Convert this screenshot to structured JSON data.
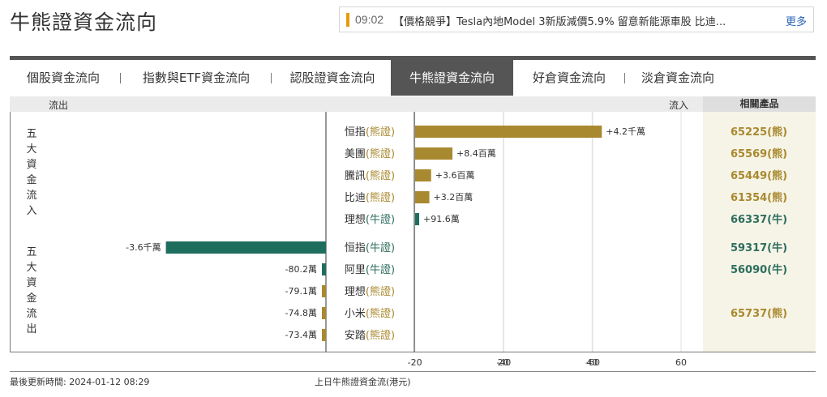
{
  "page_title": "牛熊證資金流向",
  "news": {
    "time": "09:02",
    "text": "【價格競爭】Tesla內地Model 3新版減價5.9% 留意新能源車股 比迪...",
    "more": "更多"
  },
  "tabs": [
    {
      "label": "個股資金流向"
    },
    {
      "label": "指數與ETF資金流向"
    },
    {
      "label": "認股證資金流向"
    },
    {
      "label": "牛熊證資金流向",
      "active": true
    },
    {
      "label": "好倉資金流向"
    },
    {
      "label": "淡倉資金流向"
    }
  ],
  "table_header": {
    "outflow": "流出",
    "inflow": "流入",
    "related": "相關產品"
  },
  "groups": {
    "top_inflow": "五大資金流入",
    "top_outflow": "五大資金流出"
  },
  "colors": {
    "bear": "#a9892f",
    "bull": "#1e6e5e",
    "text_bear": "#a9892f",
    "text_bull": "#2e6e5e"
  },
  "chart_data": {
    "type": "bar",
    "orientation": "horizontal",
    "unit": "百萬港元",
    "xlim": [
      -70,
      70
    ],
    "x_ticks": [
      -60,
      -40,
      -20,
      20,
      40,
      60
    ],
    "caption": "上日牛熊證資金流(港元)",
    "inflow": [
      {
        "name": "恒指",
        "kind": "(熊證)",
        "type": "bear",
        "value": 42,
        "label": "+4.2千萬",
        "product": "65225(熊)"
      },
      {
        "name": "美團",
        "kind": "(熊證)",
        "type": "bear",
        "value": 8.4,
        "label": "+8.4百萬",
        "product": "65569(熊)"
      },
      {
        "name": "騰訊",
        "kind": "(熊證)",
        "type": "bear",
        "value": 3.6,
        "label": "+3.6百萬",
        "product": "65449(熊)"
      },
      {
        "name": "比迪",
        "kind": "(熊證)",
        "type": "bear",
        "value": 3.2,
        "label": "+3.2百萬",
        "product": "61354(熊)"
      },
      {
        "name": "理想",
        "kind": "(牛證)",
        "type": "bull",
        "value": 0.916,
        "label": "+91.6萬",
        "product": "66337(牛)"
      }
    ],
    "outflow": [
      {
        "name": "恒指",
        "kind": "(牛證)",
        "type": "bull",
        "value": -36,
        "label": "-3.6千萬",
        "product": "59317(牛)"
      },
      {
        "name": "阿里",
        "kind": "(牛證)",
        "type": "bull",
        "value": -0.802,
        "label": "-80.2萬",
        "product": "56090(牛)"
      },
      {
        "name": "理想",
        "kind": "(熊證)",
        "type": "bear",
        "value": -0.791,
        "label": "-79.1萬",
        "product": ""
      },
      {
        "name": "小米",
        "kind": "(熊證)",
        "type": "bear",
        "value": -0.748,
        "label": "-74.8萬",
        "product": "65737(熊)"
      },
      {
        "name": "安踏",
        "kind": "(熊證)",
        "type": "bear",
        "value": -0.734,
        "label": "-73.4萬",
        "product": ""
      }
    ]
  },
  "footer": {
    "updated": "最後更新時間: 2024-01-12 08:29"
  }
}
